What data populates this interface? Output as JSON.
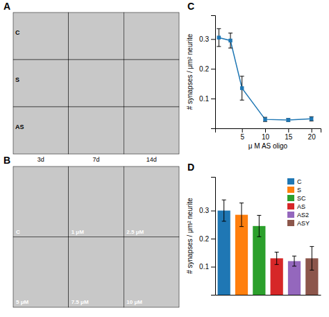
{
  "chart_data": [
    {
      "type": "image",
      "title": "A",
      "rows": [
        "C",
        "S",
        "AS"
      ],
      "columns": [
        "3d",
        "7d",
        "14d"
      ],
      "color": "#c8c8c8"
    },
    {
      "type": "image",
      "title": "B",
      "cells": [
        [
          "C",
          "1 μM",
          "2.5 μM"
        ],
        [
          "5 μM",
          "7.5 μM",
          "10 μM"
        ]
      ],
      "color": "#c8c8c8"
    },
    {
      "type": "line",
      "title": "C",
      "x": [
        0,
        2.5,
        5,
        10,
        15,
        20
      ],
      "values": [
        0.305,
        0.295,
        0.135,
        0.03,
        0.028,
        0.032
      ],
      "yerr": [
        0.03,
        0.025,
        0.04,
        0.007,
        0.005,
        0.007
      ],
      "xlabel": "μ M  AS oligo",
      "ylabel": "# synapses / μm² neurite",
      "xlim": [
        -0.8,
        22
      ],
      "ylim": [
        0,
        0.38
      ],
      "xticks": [
        5,
        10,
        15,
        20
      ],
      "yticks": [
        0.1,
        0.2,
        0.3
      ],
      "marker": "square",
      "line_style": "solid"
    },
    {
      "type": "bar",
      "title": "D",
      "categories": [
        "C",
        "S",
        "SC",
        "AS",
        "AS2",
        "ASY"
      ],
      "values": [
        0.3,
        0.285,
        0.245,
        0.13,
        0.12,
        0.13
      ],
      "yerr": [
        0.038,
        0.042,
        0.038,
        0.022,
        0.018,
        0.042
      ],
      "ylabel": "# synapses / μm² neurite",
      "ylim": [
        0,
        0.42
      ],
      "yticks": [
        0.1,
        0.2,
        0.3
      ],
      "tick_labels": "y",
      "legend": "upper-right"
    }
  ]
}
